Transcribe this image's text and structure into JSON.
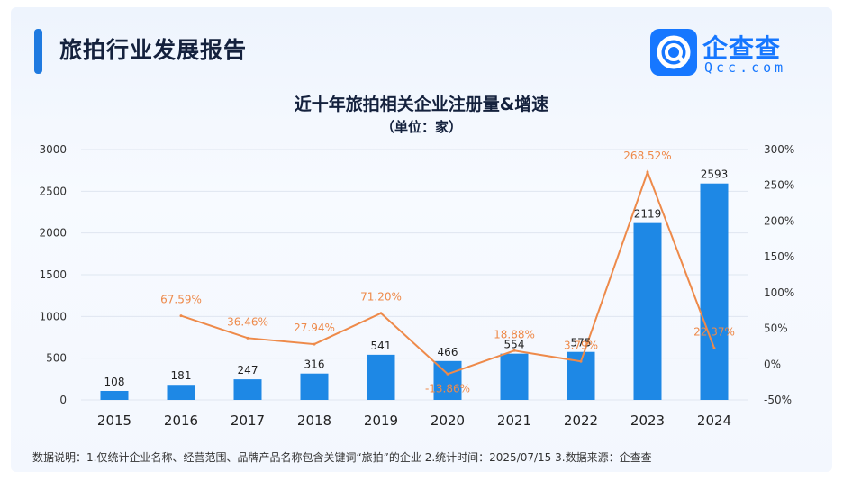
{
  "header": {
    "title": "旅拍行业发展报告",
    "logo_cn": "企查查",
    "logo_en": "Qcc.com"
  },
  "footer": {
    "note": "数据说明：1.仅统计企业名称、经营范围、品牌产品名称包含关键词“旅拍”的企业  2.统计时间：2025/07/15  3.数据来源：企查查"
  },
  "chart_data": {
    "type": "bar",
    "title": "近十年旅拍相关企业注册量&增速",
    "subtitle": "（单位：家）",
    "categories": [
      "2015",
      "2016",
      "2017",
      "2018",
      "2019",
      "2020",
      "2021",
      "2022",
      "2023",
      "2024"
    ],
    "series": [
      {
        "type": "bar",
        "axis": "left",
        "values": [
          108,
          181,
          247,
          316,
          541,
          466,
          554,
          575,
          2119,
          2593
        ],
        "labels": [
          "108",
          "181",
          "247",
          "316",
          "541",
          "466",
          "554",
          "575",
          "2119",
          "2593"
        ],
        "color": "#1e88e5"
      },
      {
        "type": "line",
        "axis": "right",
        "values": [
          null,
          67.59,
          36.46,
          27.94,
          71.2,
          -13.86,
          18.88,
          3.79,
          268.52,
          22.37
        ],
        "labels": [
          "",
          "67.59%",
          "36.46%",
          "27.94%",
          "71.20%",
          "-13.86%",
          "18.88%",
          "3.79%",
          "268.52%",
          "22.37%"
        ],
        "color": "#ee8a4a"
      }
    ],
    "y_left": {
      "min": 0,
      "max": 3000,
      "ticks": [
        "0",
        "500",
        "1000",
        "1500",
        "2000",
        "2500",
        "3000"
      ],
      "tick_values": [
        0,
        500,
        1000,
        1500,
        2000,
        2500,
        3000
      ]
    },
    "y_right": {
      "min": -50,
      "max": 300,
      "ticks": [
        "-50%",
        "0%",
        "50%",
        "100%",
        "150%",
        "200%",
        "250%",
        "300%"
      ],
      "tick_values": [
        -50,
        0,
        50,
        100,
        150,
        200,
        250,
        300
      ]
    },
    "grid": true
  }
}
